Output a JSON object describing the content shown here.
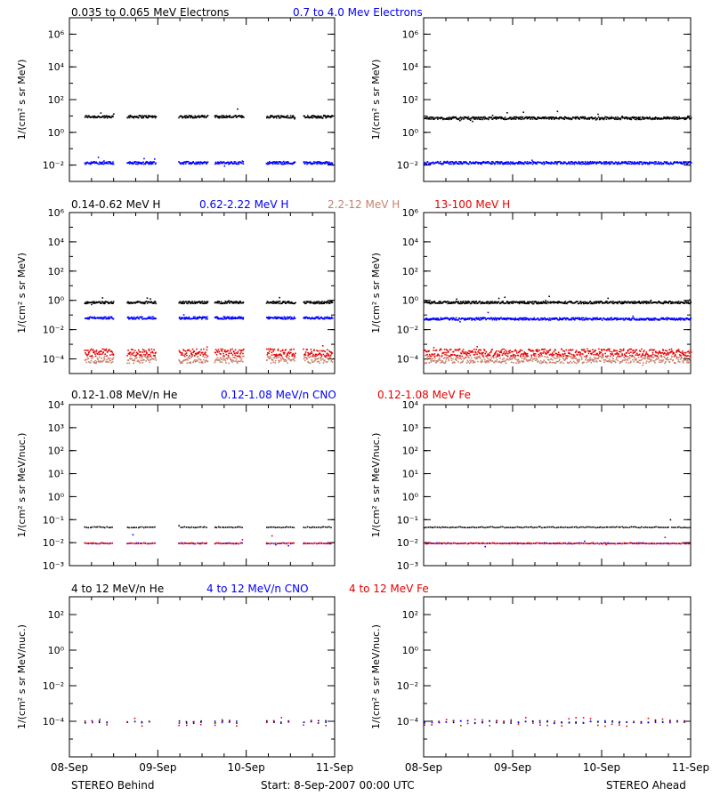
{
  "colors": {
    "black": "#000000",
    "blue": "#0000ff",
    "salmon": "#c8806e",
    "red": "#e60000"
  },
  "footer": {
    "left_label": "STEREO Behind",
    "center_label": "Start:  8-Sep-2007 00:00 UTC",
    "right_label": "STEREO Ahead"
  },
  "x_ticks": [
    "08-Sep",
    "09-Sep",
    "10-Sep",
    "11-Sep"
  ],
  "chart_data": [
    {
      "type": "scatter",
      "row": 0,
      "spacecraft": "STEREO Behind",
      "legend": [
        {
          "label": "0.035 to 0.065 MeV Electrons",
          "color": "#000000"
        },
        {
          "label": "0.7 to 4.0 Mev Electrons",
          "color": "#0000ff"
        }
      ],
      "ylabel": "1/(cm² s sr MeV)",
      "yscale": "log",
      "ylim": [
        0.001,
        10000000
      ],
      "y_ticks": [
        "10⁻²",
        "10⁰",
        "10²",
        "10⁴",
        "10⁶"
      ],
      "xlim_days": [
        0,
        3
      ],
      "data_gaps": "periodic data segments",
      "series": [
        {
          "name": "0.035 to 0.065 MeV Electrons",
          "color": "#000000",
          "typical_value": 10
        },
        {
          "name": "0.7 to 4.0 Mev Electrons",
          "color": "#0000ff",
          "typical_value": 0.015
        }
      ]
    },
    {
      "type": "scatter",
      "row": 0,
      "spacecraft": "STEREO Ahead",
      "ylabel": "1/(cm² s sr MeV)",
      "yscale": "log",
      "ylim": [
        0.001,
        10000000
      ],
      "y_ticks": [
        "10⁻²",
        "10⁰",
        "10²",
        "10⁴",
        "10⁶"
      ],
      "xlim_days": [
        0,
        3
      ],
      "data_gaps": "continuous",
      "series": [
        {
          "name": "0.035 to 0.065 MeV Electrons",
          "color": "#000000",
          "typical_value": 8
        },
        {
          "name": "0.7 to 4.0 Mev Electrons",
          "color": "#0000ff",
          "typical_value": 0.015
        }
      ]
    },
    {
      "type": "scatter",
      "row": 1,
      "spacecraft": "STEREO Behind",
      "legend": [
        {
          "label": "0.14-0.62 MeV H",
          "color": "#000000"
        },
        {
          "label": "0.62-2.22 MeV H",
          "color": "#0000ff"
        },
        {
          "label": "2.2-12 MeV H",
          "color": "#c8806e"
        },
        {
          "label": "13-100 MeV H",
          "color": "#e60000"
        }
      ],
      "ylabel": "1/(cm² s sr MeV)",
      "yscale": "log",
      "ylim": [
        1e-05,
        1000000
      ],
      "y_ticks": [
        "10⁻⁴",
        "10⁻²",
        "10⁰",
        "10²",
        "10⁴",
        "10⁶"
      ],
      "xlim_days": [
        0,
        3
      ],
      "data_gaps": "periodic data segments",
      "series": [
        {
          "name": "0.14-0.62 MeV H",
          "color": "#000000",
          "typical_value": 0.8
        },
        {
          "name": "0.62-2.22 MeV H",
          "color": "#0000ff",
          "typical_value": 0.07
        },
        {
          "name": "2.2-12 MeV H",
          "color": "#c8806e",
          "typical_value": 0.0001
        },
        {
          "name": "13-100 MeV H",
          "color": "#e60000",
          "typical_value": 0.0003
        }
      ]
    },
    {
      "type": "scatter",
      "row": 1,
      "spacecraft": "STEREO Ahead",
      "ylabel": "1/(cm² s sr MeV)",
      "yscale": "log",
      "ylim": [
        1e-05,
        1000000
      ],
      "y_ticks": [
        "10⁻⁴",
        "10⁻²",
        "10⁰",
        "10²",
        "10⁴",
        "10⁶"
      ],
      "xlim_days": [
        0,
        3
      ],
      "data_gaps": "continuous",
      "series": [
        {
          "name": "0.14-0.62 MeV H",
          "color": "#000000",
          "typical_value": 0.8
        },
        {
          "name": "0.62-2.22 MeV H",
          "color": "#0000ff",
          "typical_value": 0.06
        },
        {
          "name": "2.2-12 MeV H",
          "color": "#c8806e",
          "typical_value": 0.0001
        },
        {
          "name": "13-100 MeV H",
          "color": "#e60000",
          "typical_value": 0.0003
        }
      ]
    },
    {
      "type": "scatter",
      "row": 2,
      "spacecraft": "STEREO Behind",
      "legend": [
        {
          "label": "0.12-1.08 MeV/n He",
          "color": "#000000"
        },
        {
          "label": "0.12-1.08 MeV/n CNO",
          "color": "#0000ff"
        },
        {
          "label": "0.12-1.08 MeV Fe",
          "color": "#e60000"
        }
      ],
      "ylabel": "1/(cm² s sr MeV/nuc.)",
      "yscale": "log",
      "ylim": [
        0.001,
        10000
      ],
      "y_ticks": [
        "10⁻³",
        "10⁻²",
        "10⁻¹",
        "10⁰",
        "10¹",
        "10²",
        "10³",
        "10⁴"
      ],
      "xlim_days": [
        0,
        3
      ],
      "data_gaps": "periodic data segments",
      "series": [
        {
          "name": "0.12-1.08 MeV/n He",
          "color": "#000000",
          "typical_value": 0.05
        },
        {
          "name": "0.12-1.08 MeV/n CNO",
          "color": "#0000ff",
          "typical_value": 0.01
        },
        {
          "name": "0.12-1.08 MeV Fe",
          "color": "#e60000",
          "typical_value": 0.01
        }
      ]
    },
    {
      "type": "scatter",
      "row": 2,
      "spacecraft": "STEREO Ahead",
      "ylabel": "1/(cm² s sr MeV/nuc.)",
      "yscale": "log",
      "ylim": [
        0.001,
        10000
      ],
      "y_ticks": [
        "10⁻³",
        "10⁻²",
        "10⁻¹",
        "10⁰",
        "10¹",
        "10²",
        "10³",
        "10⁴"
      ],
      "xlim_days": [
        0,
        3
      ],
      "data_gaps": "continuous",
      "series": [
        {
          "name": "0.12-1.08 MeV/n He",
          "color": "#000000",
          "typical_value": 0.05
        },
        {
          "name": "0.12-1.08 MeV/n CNO",
          "color": "#0000ff",
          "typical_value": 0.01
        },
        {
          "name": "0.12-1.08 MeV Fe",
          "color": "#e60000",
          "typical_value": 0.01
        }
      ]
    },
    {
      "type": "scatter",
      "row": 3,
      "spacecraft": "STEREO Behind",
      "legend": [
        {
          "label": "4 to 12 MeV/n He",
          "color": "#000000"
        },
        {
          "label": "4 to 12 MeV/n CNO",
          "color": "#0000ff"
        },
        {
          "label": "4 to 12 MeV Fe",
          "color": "#e60000"
        }
      ],
      "ylabel": "1/(cm² s sr MeV/nuc.)",
      "yscale": "log",
      "ylim": [
        1e-06,
        1000
      ],
      "y_ticks": [
        "10⁻⁴",
        "10⁻²",
        "10⁰",
        "10²"
      ],
      "xlim_days": [
        0,
        3
      ],
      "data_gaps": "periodic data segments",
      "series": [
        {
          "name": "4 to 12 MeV/n He",
          "color": "#000000",
          "typical_value": 0.0001
        },
        {
          "name": "4 to 12 MeV/n CNO",
          "color": "#0000ff",
          "typical_value": 0.0001
        },
        {
          "name": "4 to 12 MeV Fe",
          "color": "#e60000",
          "typical_value": 0.0001
        }
      ]
    },
    {
      "type": "scatter",
      "row": 3,
      "spacecraft": "STEREO Ahead",
      "ylabel": "1/(cm² s sr MeV/nuc.)",
      "yscale": "log",
      "ylim": [
        1e-06,
        1000
      ],
      "y_ticks": [
        "10⁻⁴",
        "10⁻²",
        "10⁰",
        "10²"
      ],
      "xlim_days": [
        0,
        3
      ],
      "data_gaps": "continuous",
      "series": [
        {
          "name": "4 to 12 MeV/n He",
          "color": "#000000",
          "typical_value": 0.0001
        },
        {
          "name": "4 to 12 MeV/n CNO",
          "color": "#0000ff",
          "typical_value": 0.0001
        },
        {
          "name": "4 to 12 MeV Fe",
          "color": "#e60000",
          "typical_value": 0.0001
        }
      ]
    }
  ]
}
